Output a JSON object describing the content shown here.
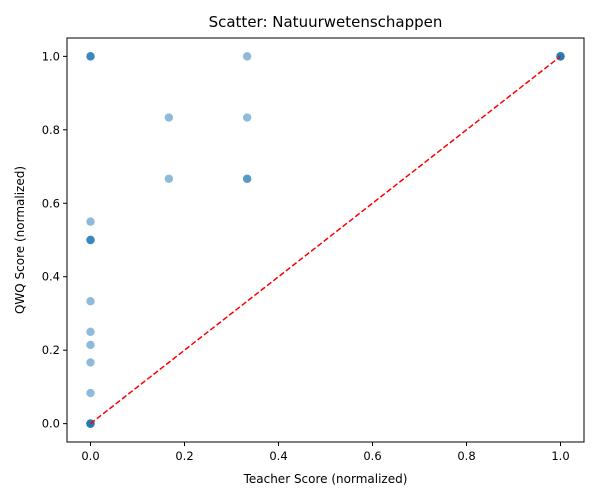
{
  "chart_data": {
    "type": "scatter",
    "title": "Scatter: Natuurwetenschappen",
    "xlabel": "Teacher Score (normalized)",
    "ylabel": "QWQ Score (normalized)",
    "xlim": [
      -0.05,
      1.05
    ],
    "ylim": [
      -0.05,
      1.05
    ],
    "xticks": [
      0.0,
      0.2,
      0.4,
      0.6,
      0.8,
      1.0
    ],
    "yticks": [
      0.0,
      0.2,
      0.4,
      0.6,
      0.8,
      1.0
    ],
    "xtick_labels": [
      "0.0",
      "0.2",
      "0.4",
      "0.6",
      "0.8",
      "1.0"
    ],
    "ytick_labels": [
      "0.0",
      "0.2",
      "0.4",
      "0.6",
      "0.8",
      "1.0"
    ],
    "grid": false,
    "points": {
      "x": [
        0,
        0,
        0,
        0,
        0,
        0,
        0,
        0,
        0,
        0,
        0,
        0,
        0,
        0,
        0,
        0,
        0,
        0,
        0.1667,
        0.1667,
        0.3333,
        0.3333,
        0.3333,
        0.3333,
        1,
        1,
        1,
        1,
        1
      ],
      "y": [
        1,
        1,
        1,
        0.55,
        0.5,
        0.5,
        0.5,
        0.3333,
        0.25,
        0.2143,
        0.1667,
        0.0833,
        0,
        0,
        0,
        0,
        0,
        0,
        0.8333,
        0.6667,
        1,
        0.8333,
        0.6667,
        0.6667,
        1,
        1,
        1,
        1,
        1
      ]
    },
    "point_color": "#1f77b4",
    "point_alpha": 0.5,
    "reference_line": {
      "x": [
        0,
        1
      ],
      "y": [
        0,
        1
      ],
      "color": "#ff0000",
      "style": "dashed"
    }
  }
}
